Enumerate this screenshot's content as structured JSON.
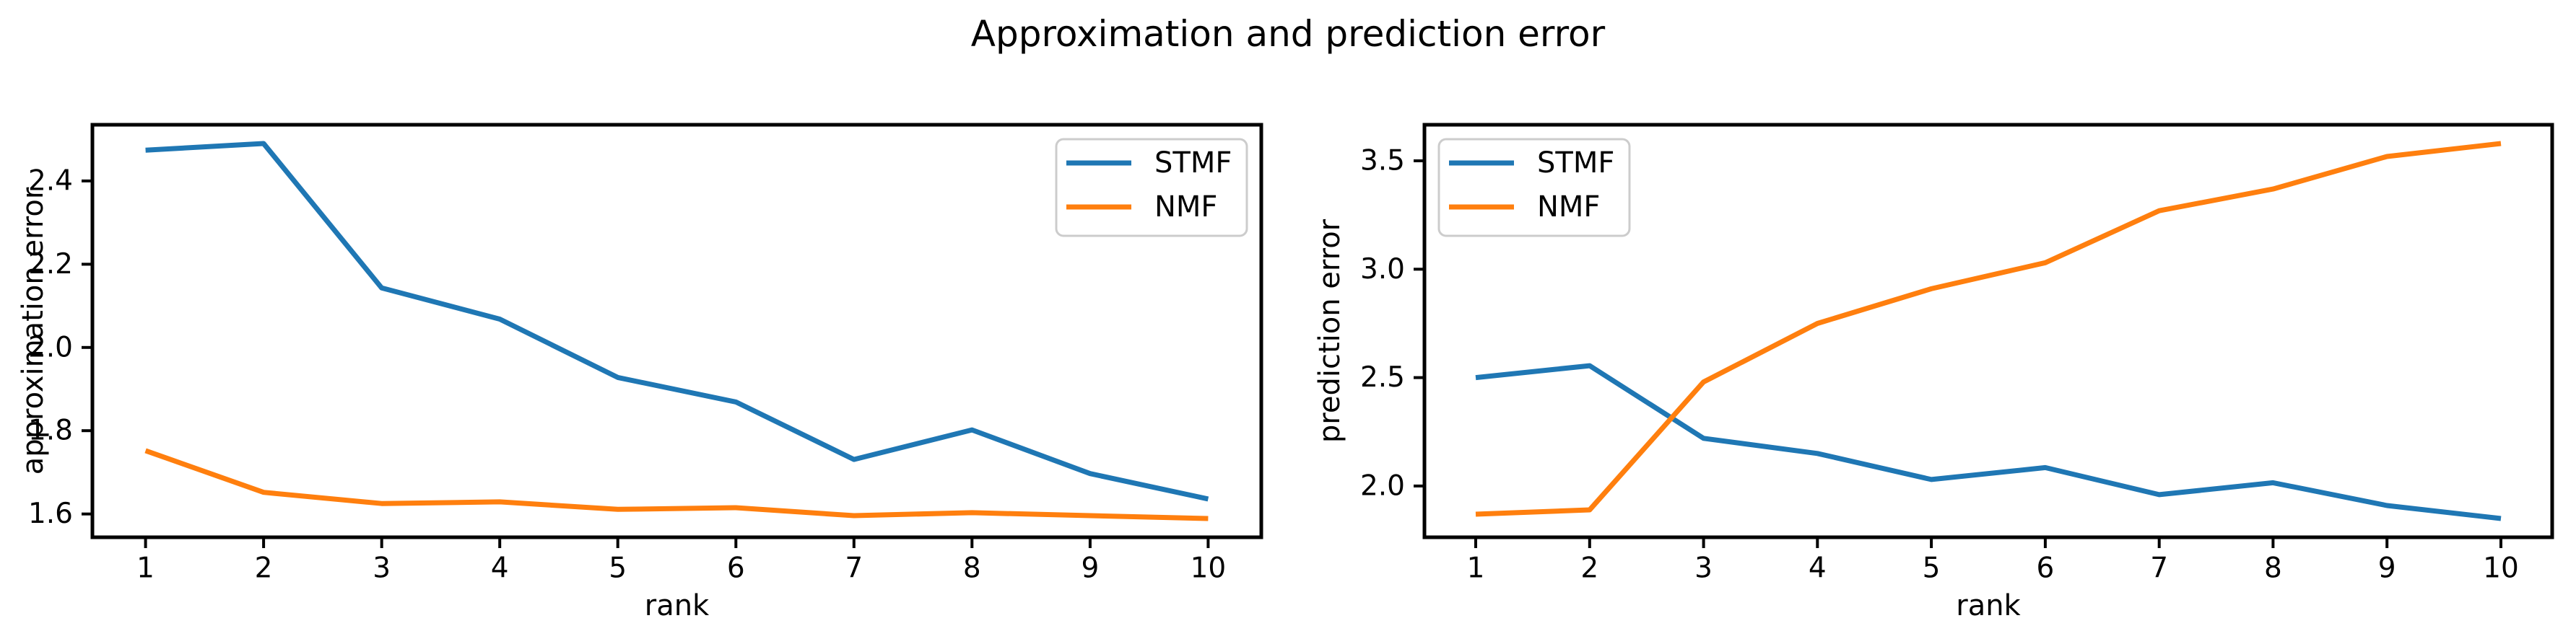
{
  "figure": {
    "title": "Approximation and prediction error",
    "background": "#ffffff"
  },
  "colors": {
    "stmf": "#1f77b4",
    "nmf": "#ff7f0e",
    "spine": "#000000",
    "legend_edge": "#cccccc",
    "text": "#000000"
  },
  "chart_data": [
    {
      "type": "line",
      "id": "approximation-error",
      "title": "",
      "xlabel": "rank",
      "ylabel": "approximation error",
      "x": [
        1,
        2,
        3,
        4,
        5,
        6,
        7,
        8,
        9,
        10
      ],
      "xtick_labels": [
        "1",
        "2",
        "3",
        "4",
        "5",
        "6",
        "7",
        "8",
        "9",
        "10"
      ],
      "ytick_values": [
        1.6,
        1.8,
        2.0,
        2.2,
        2.4
      ],
      "ytick_labels": [
        "1.6",
        "1.8",
        "2.0",
        "2.2",
        "2.4"
      ],
      "xlim": [
        0.55,
        10.45
      ],
      "ylim": [
        1.544,
        2.535
      ],
      "grid": false,
      "legend_position": "upper-right",
      "series": [
        {
          "name": "STMF",
          "color": "#1f77b4",
          "values": [
            2.474,
            2.49,
            2.143,
            2.068,
            1.928,
            1.869,
            1.731,
            1.802,
            1.697,
            1.636
          ]
        },
        {
          "name": "NMF",
          "color": "#ff7f0e",
          "values": [
            1.752,
            1.652,
            1.625,
            1.629,
            1.611,
            1.615,
            1.596,
            1.603,
            1.596,
            1.589
          ]
        }
      ]
    },
    {
      "type": "line",
      "id": "prediction-error",
      "title": "",
      "xlabel": "rank",
      "ylabel": "prediction error",
      "x": [
        1,
        2,
        3,
        4,
        5,
        6,
        7,
        8,
        9,
        10
      ],
      "xtick_labels": [
        "1",
        "2",
        "3",
        "4",
        "5",
        "6",
        "7",
        "8",
        "9",
        "10"
      ],
      "ytick_values": [
        2.0,
        2.5,
        3.0,
        3.5
      ],
      "ytick_labels": [
        "2.0",
        "2.5",
        "3.0",
        "3.5"
      ],
      "xlim": [
        0.55,
        10.45
      ],
      "ylim": [
        1.7635,
        3.6665
      ],
      "grid": false,
      "legend_position": "upper-left",
      "series": [
        {
          "name": "STMF",
          "color": "#1f77b4",
          "values": [
            2.5,
            2.555,
            2.22,
            2.15,
            2.03,
            2.085,
            1.96,
            2.015,
            1.91,
            1.85
          ]
        },
        {
          "name": "NMF",
          "color": "#ff7f0e",
          "values": [
            1.87,
            1.89,
            2.48,
            2.75,
            2.91,
            3.03,
            3.27,
            3.37,
            3.52,
            3.58
          ]
        }
      ]
    }
  ]
}
